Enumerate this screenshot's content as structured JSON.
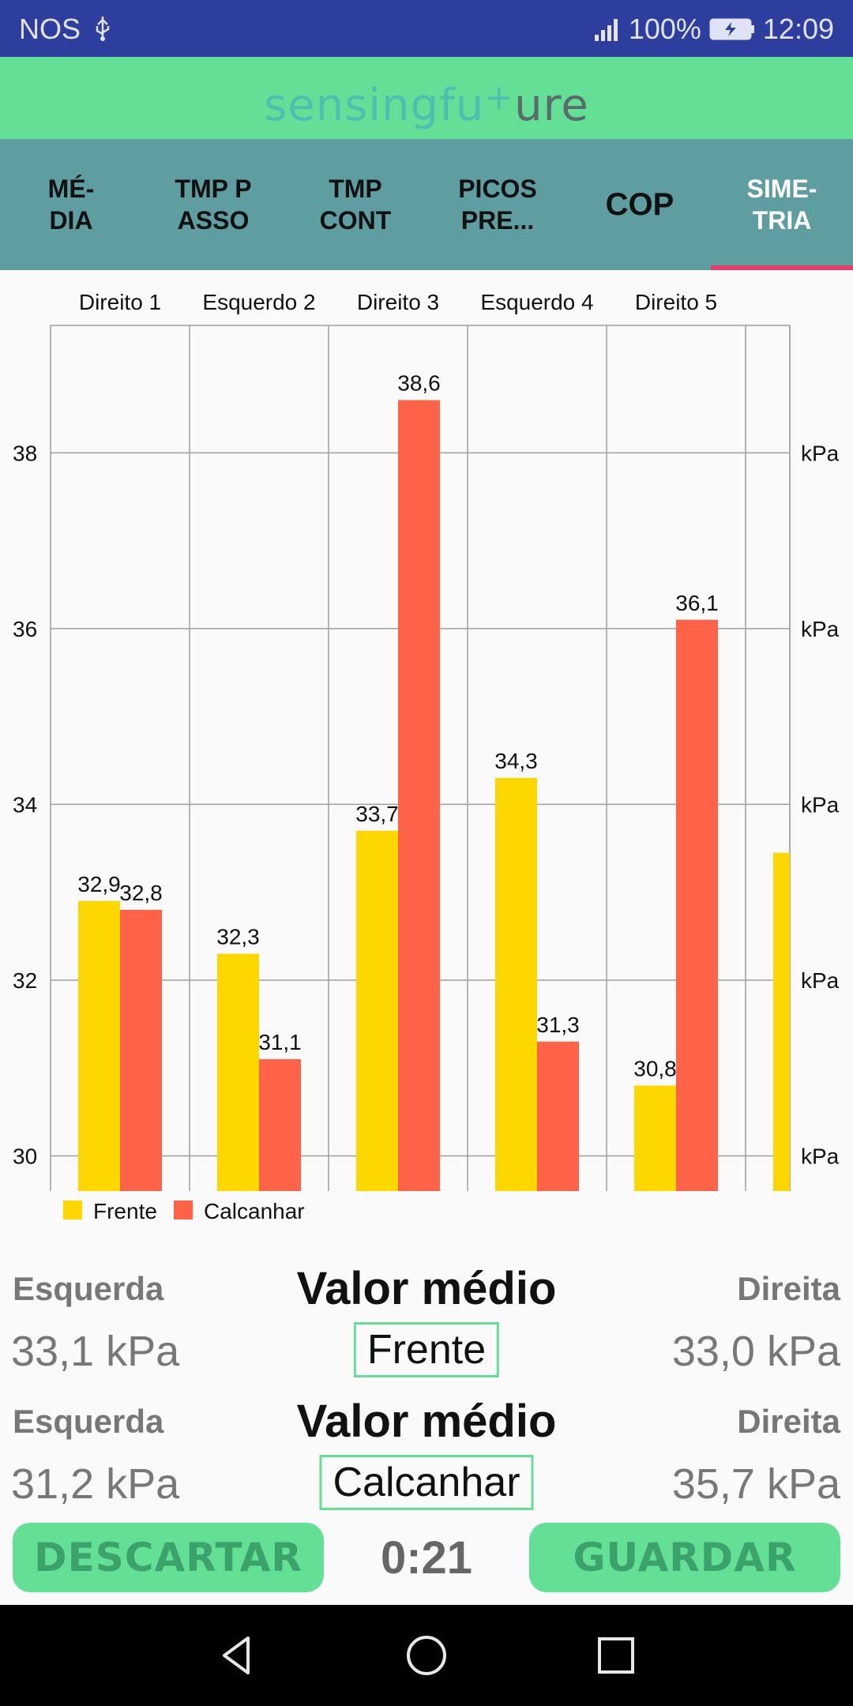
{
  "status_bar": {
    "carrier": "NOS",
    "battery": "100%",
    "time": "12:09"
  },
  "header": {
    "brand_part1": "sensing",
    "brand_part2": "fu",
    "brand_plus": "+",
    "brand_part3": "ure"
  },
  "tabs": [
    {
      "label": "MÉ-\nDIA",
      "active": false
    },
    {
      "label": "TMP P\nASSO",
      "active": false
    },
    {
      "label": "TMP\nCONT",
      "active": false
    },
    {
      "label": "PICOS\nPRE...",
      "active": false
    },
    {
      "label": "COP",
      "active": false
    },
    {
      "label": "SIME-\nTRIA",
      "active": true
    }
  ],
  "chart_data": {
    "type": "bar",
    "categories": [
      "Direito 1",
      "Esquerdo 2",
      "Direito 3",
      "Esquerdo 4",
      "Direito 5"
    ],
    "series": [
      {
        "name": "Frente",
        "color": "#ffd700",
        "values": [
          32.9,
          32.3,
          33.7,
          34.3,
          30.8
        ],
        "labels": [
          "32,9",
          "32,3",
          "33,7",
          "34,3",
          "30,8"
        ],
        "partial_next": 33.45
      },
      {
        "name": "Calcanhar",
        "color": "#ff6347",
        "values": [
          32.8,
          31.1,
          38.6,
          31.3,
          36.1
        ],
        "labels": [
          "32,8",
          "31,1",
          "38,6",
          "31,3",
          "36,1"
        ]
      }
    ],
    "ylim": [
      29.6,
      39.45
    ],
    "y_ticks": [
      30,
      32,
      34,
      36,
      38
    ],
    "y_tick_labels": [
      "30",
      "32",
      "34",
      "36",
      "38"
    ],
    "right_axis_unit": "kPa",
    "grid": true,
    "legend_position": "bottom-left"
  },
  "summary": {
    "rows": [
      {
        "left_label": "Esquerda",
        "title": "Valor médio",
        "right_label": "Direita",
        "left_value": "33,1 kPa",
        "center_label": "Frente",
        "right_value": "33,0 kPa"
      },
      {
        "left_label": "Esquerda",
        "title": "Valor médio",
        "right_label": "Direita",
        "left_value": "31,2 kPa",
        "center_label": "Calcanhar",
        "right_value": "35,7 kPa"
      }
    ]
  },
  "actions": {
    "discard": "DESCARTAR",
    "timer": "0:21",
    "save": "GUARDAR"
  },
  "colors": {
    "status_bar": "#2e3e9e",
    "header": "#64e096",
    "tabs": "#5f9ea0",
    "tab_indicator": "#e83e6e",
    "brand_gray": "#5a6b6b",
    "brand_teal": "#4cbfb0"
  },
  "icons": [
    "usb-icon",
    "signal-icon",
    "battery-charging-icon",
    "nav-back-icon",
    "nav-home-icon",
    "nav-recents-icon"
  ]
}
